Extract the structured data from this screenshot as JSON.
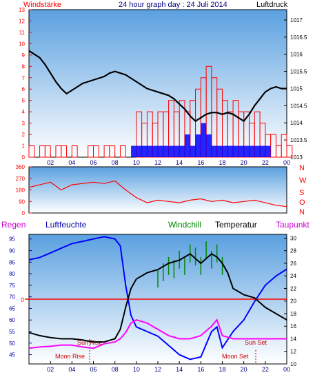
{
  "colors": {
    "plot_top": "#5aa0e0",
    "plot_bottom": "#ffffff",
    "wind": "#ff0000",
    "gust": "#0000ff",
    "pressure": "#000000",
    "direction": "#ff0000",
    "humidity": "#0000ff",
    "temperature": "#000000",
    "dewpoint": "#ff00ff",
    "windchill": "#008800",
    "rain_line": "#ff0000",
    "axis_left": "#ff0000",
    "axis_right": "#000000",
    "tick_bottom": "#000080"
  },
  "chart_data": [
    {
      "type": "line",
      "title": "24 hour graph day : 24 Juli 2014",
      "left_label": "Windstärke",
      "right_label": "Luftdruck",
      "x_ticks": [
        "02",
        "04",
        "06",
        "08",
        "10",
        "12",
        "14",
        "16",
        "18",
        "20",
        "22",
        "00"
      ],
      "left_ticks": [
        "0",
        "1",
        "2",
        "3",
        "4",
        "5",
        "6",
        "7",
        "8",
        "9",
        "10",
        "11",
        "12",
        "13"
      ],
      "right_ticks": [
        "1013",
        "1013.5",
        "1014",
        "1014.5",
        "1015",
        "1015.5",
        "1016",
        "1016.5",
        "1017"
      ],
      "xlim_hours": [
        0,
        24
      ],
      "ylim_left": [
        0,
        13
      ],
      "ylim_right": [
        1013,
        1017.3
      ],
      "series": [
        {
          "name": "Luftdruck",
          "axis": "right",
          "x": [
            0,
            0.5,
            1,
            1.5,
            2,
            2.5,
            3,
            3.5,
            4,
            4.5,
            5,
            5.5,
            6,
            6.5,
            7,
            7.5,
            8,
            8.5,
            9,
            9.5,
            10,
            10.5,
            11,
            11.5,
            12,
            12.5,
            13,
            13.5,
            14,
            14.5,
            15,
            15.5,
            16,
            16.5,
            17,
            17.5,
            18,
            18.5,
            19,
            19.5,
            20,
            20.5,
            21,
            21.5,
            22,
            22.5,
            23,
            23.5,
            24
          ],
          "y": [
            1016.1,
            1016,
            1015.9,
            1015.7,
            1015.45,
            1015.2,
            1015,
            1014.85,
            1014.95,
            1015.05,
            1015.15,
            1015.2,
            1015.25,
            1015.3,
            1015.35,
            1015.45,
            1015.5,
            1015.45,
            1015.4,
            1015.3,
            1015.2,
            1015.1,
            1015,
            1014.95,
            1014.9,
            1014.85,
            1014.8,
            1014.7,
            1014.55,
            1014.4,
            1014.2,
            1014.05,
            1014.15,
            1014.25,
            1014.3,
            1014.3,
            1014.25,
            1014.3,
            1014.25,
            1014.15,
            1014.05,
            1014.25,
            1014.5,
            1014.7,
            1014.9,
            1015,
            1015.05,
            1015,
            1015
          ]
        },
        {
          "name": "Windstärke",
          "axis": "left",
          "x": [
            0,
            0.5,
            1,
            1.5,
            2,
            2.5,
            3,
            3.5,
            4,
            4.5,
            5,
            5.5,
            6,
            6.5,
            7,
            7.5,
            8,
            8.5,
            9,
            9.5,
            10,
            10.5,
            11,
            11.5,
            12,
            12.5,
            13,
            13.5,
            14,
            14.5,
            15,
            15.5,
            16,
            16.5,
            17,
            17.5,
            18,
            18.5,
            19,
            19.5,
            20,
            20.5,
            21,
            21.5,
            22,
            22.5,
            23,
            23.5,
            24
          ],
          "y": [
            1,
            0,
            1,
            1,
            0,
            1,
            1,
            0,
            1,
            0,
            0,
            1,
            1,
            0,
            1,
            1,
            0,
            1,
            0,
            0,
            4,
            3,
            4,
            3,
            4,
            4,
            5,
            4,
            5,
            4,
            5,
            6,
            7,
            8,
            7,
            6,
            5,
            4,
            5,
            4,
            4,
            3,
            4,
            3,
            2,
            2,
            1,
            2,
            1
          ]
        },
        {
          "name": "Böen",
          "axis": "left",
          "x": [
            9.5,
            10,
            10.5,
            11,
            11.5,
            12,
            12.5,
            13,
            13.5,
            14,
            14.5,
            15,
            15.5,
            16,
            16.5,
            17,
            17.5,
            18,
            18.5,
            19,
            19.5,
            20,
            20.5,
            21,
            21.5,
            22
          ],
          "y": [
            1,
            1,
            1,
            1,
            1,
            1,
            1,
            1,
            1,
            1,
            2,
            1,
            2,
            3,
            2,
            1,
            1,
            1,
            1,
            1,
            1,
            1,
            1,
            1,
            1,
            1
          ]
        }
      ]
    },
    {
      "type": "line",
      "left_ticks": [
        "0",
        "90",
        "180",
        "270",
        "360"
      ],
      "right_labels": [
        "N",
        "W",
        "S",
        "O",
        "N"
      ],
      "xlim_hours": [
        0,
        24
      ],
      "ylim": [
        0,
        360
      ],
      "series": [
        {
          "name": "Windrichtung",
          "x": [
            0,
            1,
            2,
            3,
            4,
            5,
            6,
            7,
            8,
            9,
            10,
            11,
            12,
            13,
            14,
            15,
            16,
            17,
            18,
            19,
            20,
            21,
            22,
            23,
            24
          ],
          "y": [
            200,
            220,
            240,
            180,
            220,
            230,
            240,
            230,
            250,
            180,
            120,
            80,
            100,
            90,
            80,
            100,
            110,
            90,
            100,
            80,
            90,
            100,
            80,
            60,
            50
          ]
        }
      ]
    },
    {
      "type": "line",
      "labels": {
        "regen": "Regen",
        "luftfeuchte": "Luftfeuchte",
        "windchill": "Windchill",
        "temperatur": "Temperatur",
        "taupunkt": "Taupunkt"
      },
      "left_ticks": [
        "45",
        "50",
        "55",
        "60",
        "65",
        "70",
        "75",
        "80",
        "85",
        "90",
        "95"
      ],
      "right_ticks": [
        "10",
        "12",
        "14",
        "16",
        "18",
        "20",
        "22",
        "24",
        "26",
        "28",
        "30"
      ],
      "rain_value_label": "0",
      "annotations": [
        "Sun Rise",
        "Moon Rise",
        "Moon Set",
        "Sun Set"
      ],
      "xlim_hours": [
        0,
        24
      ],
      "ylim_humidity": [
        41,
        97
      ],
      "ylim_temp": [
        10,
        30.6
      ],
      "series": [
        {
          "name": "Luftfeuchte",
          "axis": "left",
          "x": [
            0,
            1,
            2,
            3,
            4,
            5,
            6,
            7,
            8,
            8.5,
            9,
            9.5,
            10,
            11,
            12,
            13,
            14,
            15,
            16,
            17,
            17.5,
            18,
            19,
            20,
            21,
            22,
            23,
            24
          ],
          "y": [
            86,
            87,
            89,
            91,
            93,
            94,
            95,
            96,
            95,
            92,
            75,
            62,
            57,
            55,
            53,
            49,
            45,
            43,
            44,
            55,
            57,
            48,
            55,
            60,
            68,
            75,
            79,
            82
          ]
        },
        {
          "name": "Temperatur",
          "axis": "right",
          "x": [
            0,
            1,
            2,
            3,
            4,
            5,
            6,
            7,
            8,
            8.5,
            9,
            9.5,
            10,
            11,
            12,
            13,
            14,
            15,
            16,
            17,
            17.5,
            18,
            18.5,
            19,
            20,
            21,
            22,
            23,
            24
          ],
          "y": [
            15,
            14.5,
            14.2,
            14,
            14,
            13.8,
            13.5,
            13.5,
            14,
            15.5,
            19,
            22,
            23.5,
            24.5,
            25,
            26,
            26.5,
            27.5,
            26,
            27.5,
            27,
            26,
            24.5,
            22,
            21,
            20.5,
            19,
            18,
            17
          ]
        },
        {
          "name": "Taupunkt",
          "axis": "right",
          "x": [
            0,
            1,
            2,
            3,
            4,
            5,
            6,
            7,
            8,
            8.5,
            9,
            9.5,
            10,
            11,
            12,
            13,
            14,
            15,
            16,
            17,
            17.5,
            18,
            19,
            20,
            21,
            22,
            23,
            24
          ],
          "y": [
            12.5,
            12.7,
            12.8,
            13,
            13,
            12.7,
            12.5,
            13.2,
            13.5,
            14,
            15,
            16.5,
            17,
            16.5,
            15.5,
            14.5,
            14,
            14,
            14.5,
            16,
            17,
            14.5,
            14,
            14,
            14,
            14,
            14,
            14
          ]
        },
        {
          "name": "Windchill",
          "axis": "right",
          "x": [
            12,
            12.5,
            13,
            13.5,
            14,
            14.5,
            15,
            15.5,
            16,
            16.5,
            17,
            17.5,
            18
          ],
          "y": [
            25,
            26,
            27,
            26.5,
            28,
            27,
            29,
            28.5,
            27,
            29.5,
            28,
            29,
            27
          ]
        }
      ]
    }
  ]
}
